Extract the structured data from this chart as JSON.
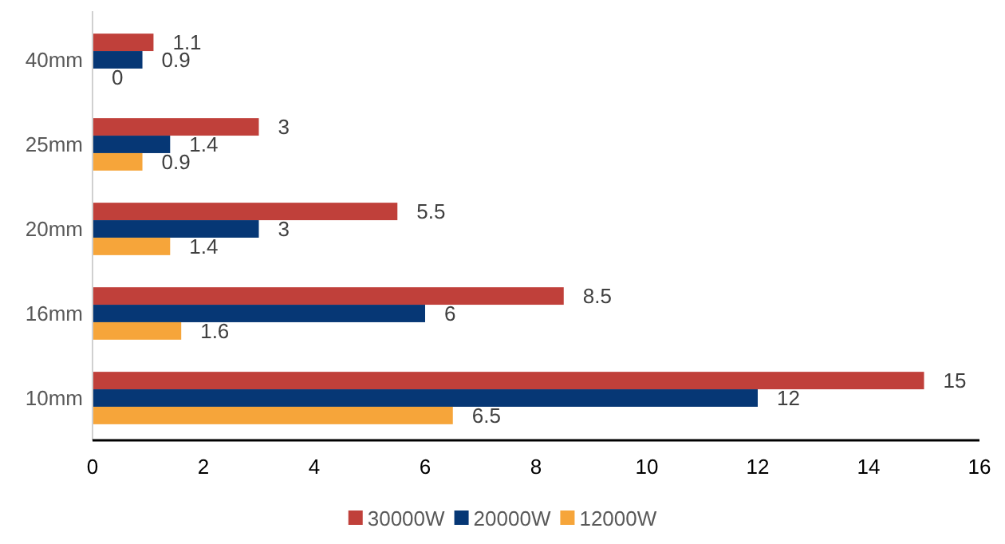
{
  "chart_data": {
    "type": "bar",
    "orientation": "horizontal",
    "categories": [
      "40mm",
      "25mm",
      "20mm",
      "16mm",
      "10mm"
    ],
    "series": [
      {
        "name": "30000W",
        "color": "#c0403a",
        "values": [
          1.1,
          3,
          5.5,
          8.5,
          15
        ]
      },
      {
        "name": "20000W",
        "color": "#063775",
        "values": [
          0.9,
          1.4,
          3,
          6,
          12
        ]
      },
      {
        "name": "12000W",
        "color": "#f6a53a",
        "values": [
          0,
          0.9,
          1.4,
          1.6,
          6.5
        ]
      }
    ],
    "xlim": [
      0,
      16
    ],
    "xticks": [
      0,
      2,
      4,
      6,
      8,
      10,
      12,
      14,
      16
    ],
    "grid": false,
    "legend": "bottom",
    "data_labels": true
  }
}
